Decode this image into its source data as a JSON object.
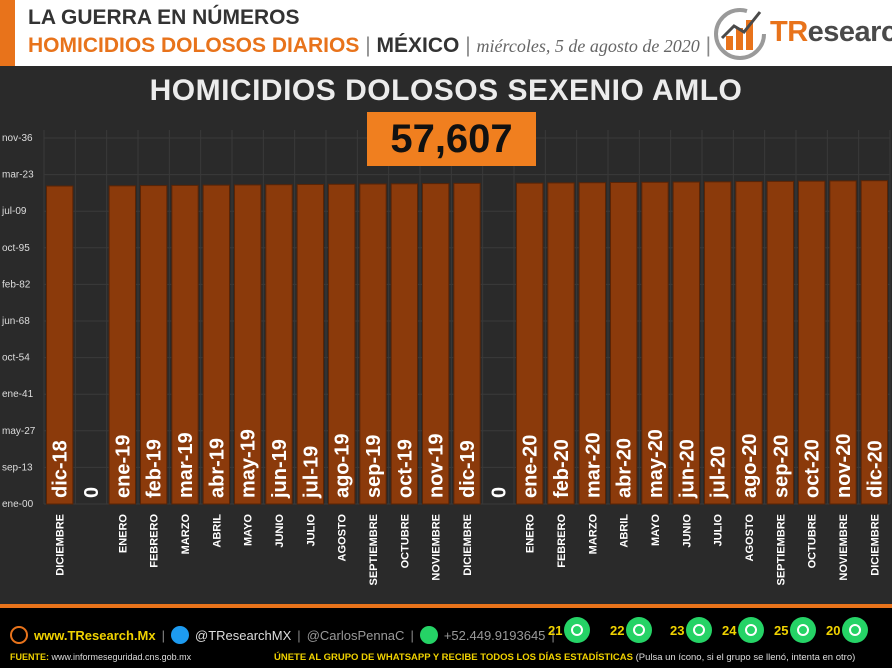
{
  "header": {
    "line1": "LA GUERRA EN NÚMEROS",
    "line2_orange": "HOMICIDIOS DOLOSOS DIARIOS",
    "separator": "|",
    "line2_country": "MÉXICO",
    "line2_date": "miércoles, 5 de agosto de 2020",
    "logo_text_a": "TR",
    "logo_text_b": "esearch"
  },
  "footer": {
    "website": "www.TResearch.Mx",
    "twitter": "@TResearchMX",
    "personal": "@CarlosPennaC",
    "phone": "+52.449.9193645",
    "source_label": "FUENTE:",
    "source_url": "www.informeseguridad.cns.gob.mx",
    "cta_main": "ÚNETE AL GRUPO DE WHATSAPP Y RECIBE TODOS LOS DÍAS ESTADÍSTICAS",
    "cta_note": "(Pulsa un ícono, si el grupo se llenó, intenta en otro)",
    "groups": [
      "21",
      "22",
      "23",
      "24",
      "25",
      "20"
    ]
  },
  "colors": {
    "accent": "#e8731b",
    "bar_fill": "#8b3a0b",
    "chart_bg": "#2a2a2a",
    "total_box": "#f07f1f"
  },
  "chart_data": {
    "type": "bar",
    "title": "HOMICIDIOS DOLOSOS SEXENIO AMLO",
    "total_label": "57,607",
    "y_tick_labels": [
      "ene-00",
      "sep-13",
      "may-27",
      "ene-41",
      "oct-54",
      "jun-68",
      "feb-82",
      "oct-95",
      "jul-09",
      "mar-23",
      "nov-36"
    ],
    "ylim": [
      0,
      50000
    ],
    "grid": true,
    "categories": [
      "DICIEMBRE",
      "",
      "ENERO",
      "FEBRERO",
      "MARZO",
      "ABRIL",
      "MAYO",
      "JUNIO",
      "JULIO",
      "AGOSTO",
      "SEPTIEMBRE",
      "OCTUBRE",
      "NOVIEMBRE",
      "DICIEMBRE",
      "",
      "ENERO",
      "FEBRERO",
      "MARZO",
      "ABRIL",
      "MAYO",
      "JUNIO",
      "JULIO",
      "AGOSTO",
      "SEPTIEMBRE",
      "OCTUBRE",
      "NOVIEMBRE",
      "DICIEMBRE"
    ],
    "bar_labels": [
      "dic-18",
      "0",
      "ene-19",
      "feb-19",
      "mar-19",
      "abr-19",
      "may-19",
      "jun-19",
      "jul-19",
      "ago-19",
      "sep-19",
      "oct-19",
      "nov-19",
      "dic-19",
      "0",
      "ene-20",
      "feb-20",
      "mar-20",
      "abr-20",
      "may-20",
      "jun-20",
      "jul-20",
      "ago-20",
      "sep-20",
      "oct-20",
      "nov-20",
      "dic-20"
    ],
    "values": [
      43435,
      0,
      43466,
      43497,
      43525,
      43556,
      43586,
      43617,
      43647,
      43678,
      43709,
      43739,
      43770,
      43800,
      0,
      43831,
      43862,
      43891,
      43922,
      43952,
      43983,
      44013,
      44044,
      44075,
      44105,
      44136,
      44166
    ]
  }
}
